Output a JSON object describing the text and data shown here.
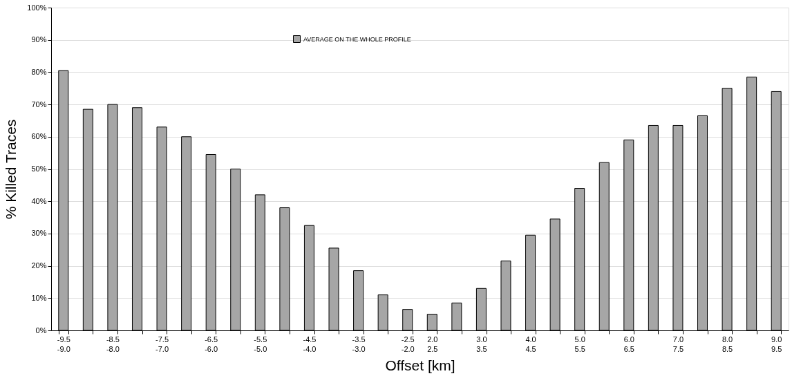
{
  "chart_data": {
    "type": "bar",
    "xlabel": "Offset  [km]",
    "ylabel": "% Killed Traces",
    "categories": [
      "-9.5\n-9.0",
      null,
      "-8.5\n-8.0",
      null,
      "-7.5\n-7.0",
      null,
      "-6.5\n-6.0",
      null,
      "-5.5\n-5.0",
      null,
      "-4.5\n-4.0",
      null,
      "-3.5\n-3.0",
      null,
      "-2.5\n-2.0",
      "2.0\n2.5",
      null,
      "3.0\n3.5",
      null,
      "4.0\n4.5",
      null,
      "5.0\n5.5",
      null,
      "6.0\n6.5",
      null,
      "7.0\n7.5",
      null,
      "8.0\n8.5",
      null,
      "9.0\n9.5"
    ],
    "series": [
      {
        "name": "AVERAGE ON THE WHOLE PROFILE",
        "color": "#a6a6a6",
        "values": [
          80.5,
          68.5,
          70,
          69,
          63,
          60,
          54.5,
          50,
          42,
          38,
          32.5,
          25.5,
          18.5,
          11,
          6.5,
          5,
          8.5,
          13,
          21.5,
          29.5,
          34.5,
          44,
          52,
          59,
          63.5,
          63.5,
          66.5,
          75,
          78.5,
          74
        ]
      }
    ],
    "ylim": [
      0,
      100
    ],
    "yticks": [
      {
        "value": 0,
        "label": "0%"
      },
      {
        "value": 10,
        "label": "10%"
      },
      {
        "value": 20,
        "label": "20%"
      },
      {
        "value": 30,
        "label": "30%"
      },
      {
        "value": 40,
        "label": "40%"
      },
      {
        "value": 50,
        "label": "50%"
      },
      {
        "value": 60,
        "label": "60%"
      },
      {
        "value": 70,
        "label": "70%"
      },
      {
        "value": 80,
        "label": "80%"
      },
      {
        "value": 90,
        "label": "90%"
      },
      {
        "value": 100,
        "label": "100%"
      }
    ],
    "grid": "y",
    "legend": "top"
  }
}
